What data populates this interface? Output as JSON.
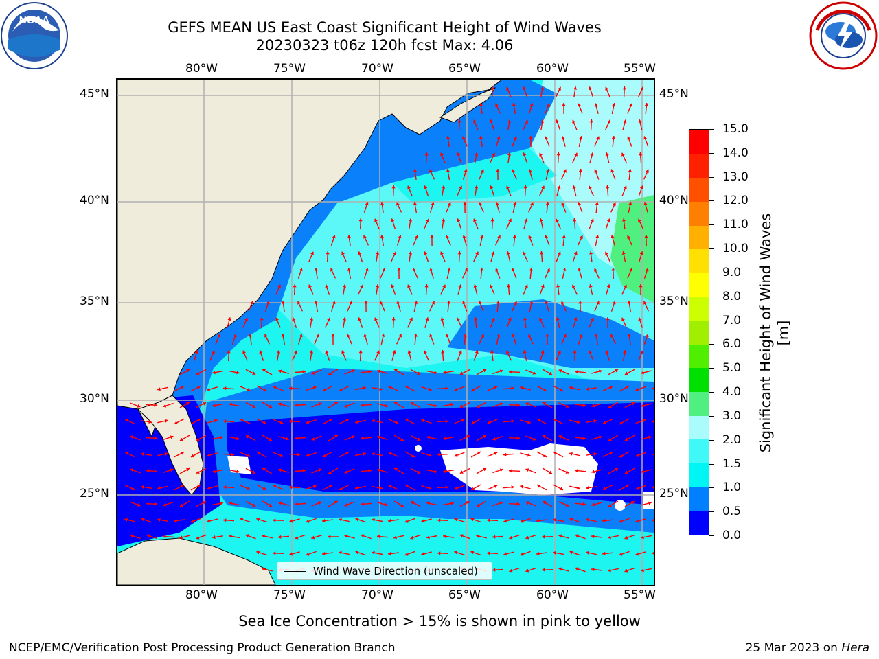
{
  "title": {
    "line1": "GEFS MEAN US East Coast Significant Height of Wind Waves",
    "line2": "20230323 t06z 120h fcst   Max: 4.06"
  },
  "map": {
    "lon_labels": [
      "80°W",
      "75°W",
      "70°W",
      "65°W",
      "60°W",
      "55°W"
    ],
    "lat_labels": [
      "45°N",
      "40°N",
      "35°N",
      "30°N",
      "25°N"
    ],
    "legend_label": "Wind Wave Direction (unscaled)",
    "colors": {
      "land": "#efecdc",
      "coast": "#000000",
      "grid": "#b0b0b0",
      "arrow": "#ff0000",
      "no_data": "#ffffff"
    }
  },
  "colorbar": {
    "title": "Significant Height of Wind Waves [m]",
    "ticks": [
      "15.0",
      "14.0",
      "13.0",
      "12.0",
      "11.0",
      "10.0",
      "9.0",
      "8.0",
      "7.0",
      "6.0",
      "5.0",
      "4.0",
      "3.0",
      "2.0",
      "1.5",
      "1.0",
      "0.5",
      "0.0"
    ],
    "colors": [
      "#0000ff",
      "#0080ff",
      "#00f5f5",
      "#40f8f8",
      "#aafcfc",
      "#50f080",
      "#00e000",
      "#50ee00",
      "#a0ee00",
      "#ccff00",
      "#ffff00",
      "#ffe000",
      "#ffb000",
      "#ff8000",
      "#ff5000",
      "#ff2000",
      "#ff0000"
    ]
  },
  "notes": {
    "ice": "Sea Ice Concentration > 15% is shown in pink to yellow"
  },
  "footer": {
    "left": "NCEP/EMC/Verification Post Processing Product Generation Branch",
    "right_date": "25 Mar 2023 on ",
    "right_machine": "Hera"
  },
  "logos": {
    "left": "NOAA",
    "right": "NATIONAL WEATHER SERVICE"
  }
}
